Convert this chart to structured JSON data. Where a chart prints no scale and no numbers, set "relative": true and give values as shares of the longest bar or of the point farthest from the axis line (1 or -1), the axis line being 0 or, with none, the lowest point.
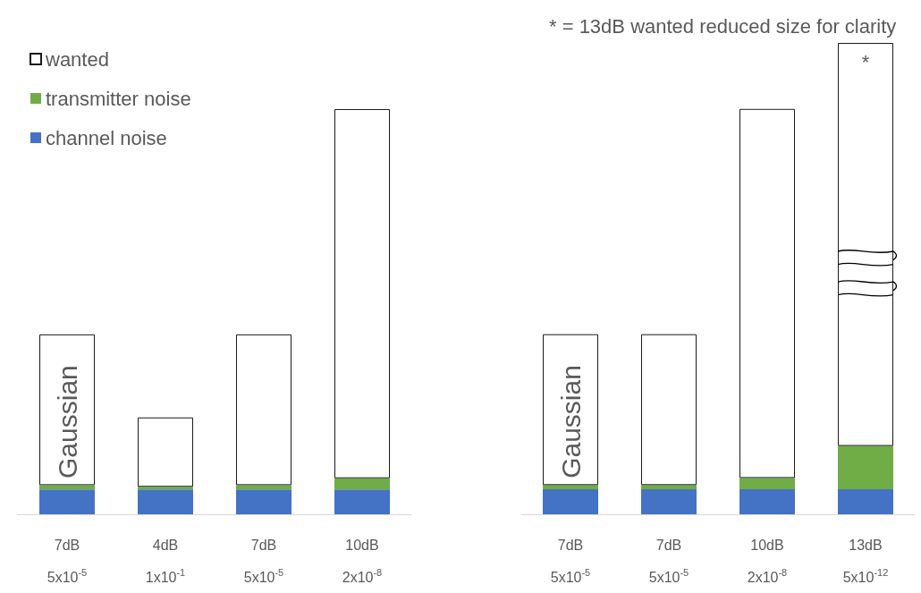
{
  "chart_data": [
    {
      "type": "bar",
      "stacked": true,
      "relative": true,
      "legend": "top left",
      "categories": [
        "7dB\n5x10$^{-5}$",
        "4dB\n1x10$^{-1}$",
        "7dB\n5x10$^{-5}$",
        "10dB\n2x10$^{-8}$"
      ],
      "series": [
        {
          "name": "channel noise",
          "color": "#4472c4",
          "values": [
            0.061,
            0.061,
            0.061,
            0.061
          ]
        },
        {
          "name": "transmitter noise",
          "color": "#70ad47",
          "values": [
            0.011,
            0.007,
            0.011,
            0.028
          ]
        },
        {
          "name": "wanted",
          "color": "#ffffff",
          "values": [
            0.372,
            0.171,
            0.372,
            0.911
          ]
        }
      ],
      "annotations": [
        "Gaussian"
      ]
    },
    {
      "type": "bar",
      "stacked": true,
      "relative": true,
      "categories": [
        "7dB\n5x10$^{-5}$",
        "7dB\n5x10$^{-5}$",
        "10dB\n2x10$^{-8}$",
        "13dB\n5x10$^{-12}$"
      ],
      "series": [
        {
          "color": "#4472c4",
          "values": [
            0.053,
            0.053,
            0.053,
            0.053
          ]
        },
        {
          "color": "#70ad47",
          "values": [
            0.009,
            0.009,
            0.024,
            0.092
          ]
        },
        {
          "color": "#ffffff",
          "values": [
            0.32,
            0.32,
            0.783,
            0.855
          ]
        }
      ],
      "annotations": [
        "Gaussian",
        "*",
        "* = 13dB wanted reduced size for clarity"
      ]
    }
  ]
}
